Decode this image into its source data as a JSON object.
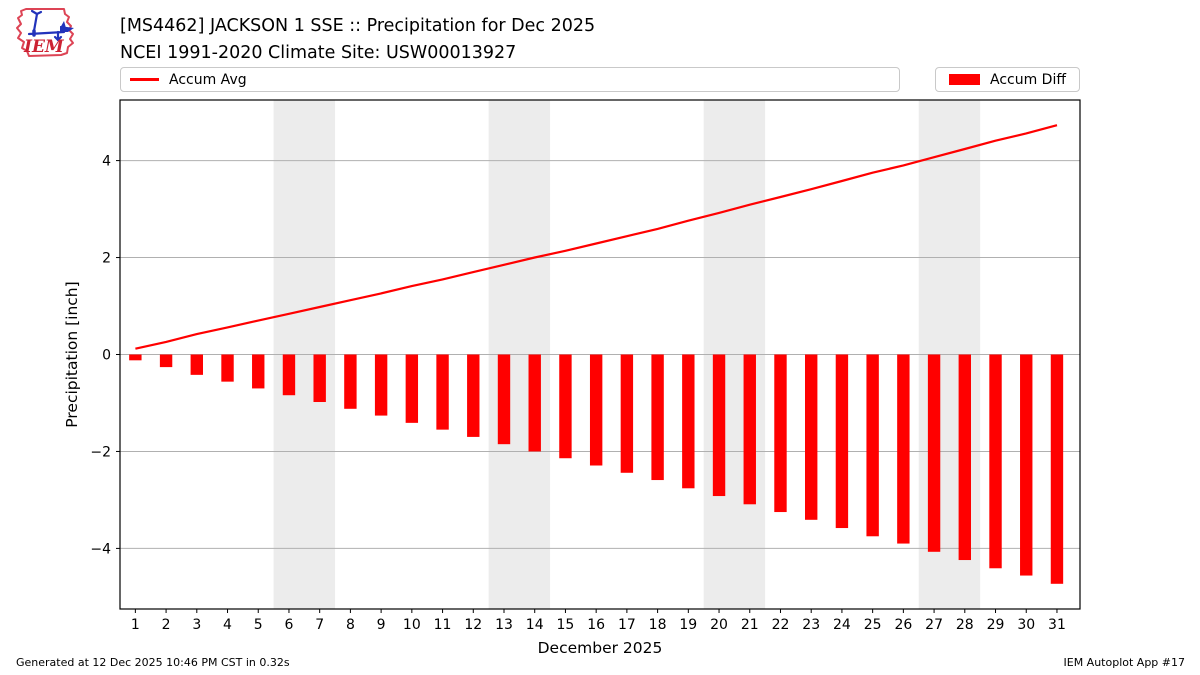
{
  "header": {
    "logo_text": "IEM",
    "title_line1": "[MS4462] JACKSON 1 SSE :: Precipitation for Dec 2025",
    "title_line2": "NCEI 1991-2020 Climate Site: USW00013927"
  },
  "legend": {
    "avg_label": "Accum Avg",
    "diff_label": "Accum Diff"
  },
  "footer": {
    "generated": "Generated at 12 Dec 2025 10:46 PM CST in 0.32s",
    "app": "IEM Autoplot App #17"
  },
  "colors": {
    "series_red": "#ff0000",
    "weekend_band": "#ececec",
    "gridline": "#b0b0b0",
    "frame": "#000000",
    "logo_red": "#dd4455",
    "logo_blue": "#2233bb"
  },
  "chart_data": {
    "type": "bar",
    "title": "[MS4462] JACKSON 1 SSE :: Precipitation for Dec 2025",
    "subtitle": "NCEI 1991-2020 Climate Site: USW00013927",
    "xlabel": "December 2025",
    "ylabel": "Precipitation [inch]",
    "xlim": [
      0.5,
      31.75
    ],
    "ylim": [
      -5.25,
      5.25
    ],
    "grid": "horizontal",
    "legend_position": "top",
    "x": [
      1,
      2,
      3,
      4,
      5,
      6,
      7,
      8,
      9,
      10,
      11,
      12,
      13,
      14,
      15,
      16,
      17,
      18,
      19,
      20,
      21,
      22,
      23,
      24,
      25,
      26,
      27,
      28,
      29,
      30,
      31
    ],
    "xticks": [
      1,
      2,
      3,
      4,
      5,
      6,
      7,
      8,
      9,
      10,
      11,
      12,
      13,
      14,
      15,
      16,
      17,
      18,
      19,
      20,
      21,
      22,
      23,
      24,
      25,
      26,
      27,
      28,
      29,
      30,
      31
    ],
    "yticks": [
      {
        "value": -4,
        "label": "−4"
      },
      {
        "value": -2,
        "label": "−2"
      },
      {
        "value": 0,
        "label": "0"
      },
      {
        "value": 2,
        "label": "2"
      },
      {
        "value": 4,
        "label": "4"
      }
    ],
    "weekend_bands": [
      [
        5.5,
        7.5
      ],
      [
        12.5,
        14.5
      ],
      [
        19.5,
        21.5
      ],
      [
        26.5,
        28.5
      ]
    ],
    "series": [
      {
        "name": "Accum Avg",
        "type": "line",
        "color": "#ff0000",
        "values": [
          0.12,
          0.26,
          0.42,
          0.56,
          0.7,
          0.84,
          0.98,
          1.12,
          1.26,
          1.41,
          1.55,
          1.7,
          1.85,
          2.0,
          2.14,
          2.29,
          2.44,
          2.59,
          2.76,
          2.92,
          3.09,
          3.25,
          3.41,
          3.58,
          3.75,
          3.9,
          4.07,
          4.24,
          4.41,
          4.56,
          4.73
        ]
      },
      {
        "name": "Accum Diff",
        "type": "bar",
        "color": "#ff0000",
        "values": [
          -0.12,
          -0.26,
          -0.42,
          -0.56,
          -0.7,
          -0.84,
          -0.98,
          -1.12,
          -1.26,
          -1.41,
          -1.55,
          -1.7,
          -1.85,
          -2.0,
          -2.14,
          -2.29,
          -2.44,
          -2.59,
          -2.76,
          -2.92,
          -3.09,
          -3.25,
          -3.41,
          -3.58,
          -3.75,
          -3.9,
          -4.07,
          -4.24,
          -4.41,
          -4.56,
          -4.73
        ]
      }
    ]
  }
}
